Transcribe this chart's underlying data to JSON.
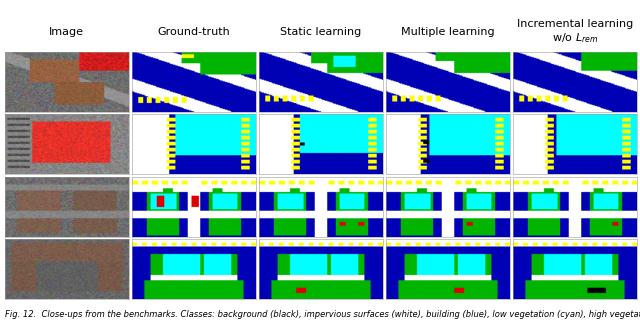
{
  "col_headers": [
    "Image",
    "Ground-truth",
    "Static learning",
    "Multiple learning",
    "Incremental learning\nw/o $L_{rem}$"
  ],
  "n_rows": 4,
  "n_cols": 5,
  "fig_caption": "Fig. 12.  Close-ups from the benchmarks. Classes: background (black), impervious surfaces (white), building (blue), low vegetation (cyan), high vegetation",
  "background_color": "#ffffff",
  "header_fontsize": 8,
  "caption_fontsize": 6
}
